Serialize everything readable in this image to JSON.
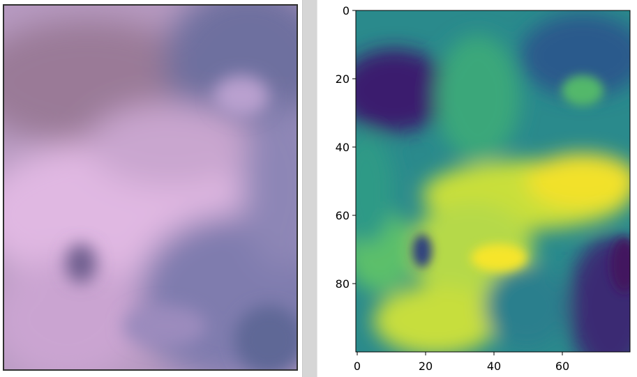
{
  "left_panel": {
    "image": "rgb-cloud-image"
  },
  "right_panel": {
    "chart_data": {
      "type": "heatmap",
      "title": "",
      "xlabel": "",
      "ylabel": "",
      "xlim": [
        0,
        80
      ],
      "ylim": [
        100,
        0
      ],
      "x_ticks": [
        "0",
        "20",
        "40",
        "60"
      ],
      "y_ticks": [
        "0",
        "20",
        "40",
        "60",
        "80"
      ],
      "grid": false,
      "colormap": "viridis"
    }
  },
  "colors": {
    "splitter": "#d6d6d6",
    "frame": "#2f2f2f",
    "viridis_low": "#440154",
    "viridis_mid": "#21918c",
    "viridis_high": "#fde725"
  }
}
